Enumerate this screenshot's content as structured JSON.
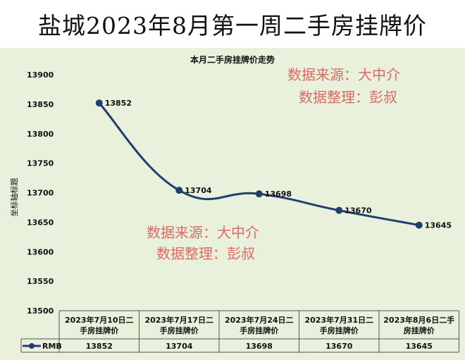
{
  "page": {
    "main_title": "盐城2023年8月第一周二手房挂牌价",
    "watermark_1": "数据来源：大中介",
    "watermark_2": "数据整理：彭叔"
  },
  "colors": {
    "line": "#1f3f6e",
    "plot_bg": "#e9f0dc",
    "watermark": "#d9534f"
  },
  "chart_data": {
    "type": "line",
    "title": "本月二手房挂牌价走势",
    "ylabel": "坐标轴标题",
    "xlabel": "",
    "ylim": [
      13500,
      13900
    ],
    "yticks": [
      "13500",
      "13550",
      "13600",
      "13650",
      "13700",
      "13750",
      "13800",
      "13850",
      "13900"
    ],
    "categories": [
      [
        "2023年7月10日二",
        "手房挂牌价"
      ],
      [
        "2023年7月17日二",
        "手房挂牌价"
      ],
      [
        "2023年7月24日二",
        "手房挂牌价"
      ],
      [
        "2023年7月31日二",
        "手房挂牌价"
      ],
      [
        "2023年8月6日二手",
        "房挂牌价"
      ]
    ],
    "series": [
      {
        "name": "RMB",
        "values": [
          13852,
          13704,
          13698,
          13670,
          13645
        ]
      }
    ],
    "grid": false,
    "legend": "table-left"
  }
}
